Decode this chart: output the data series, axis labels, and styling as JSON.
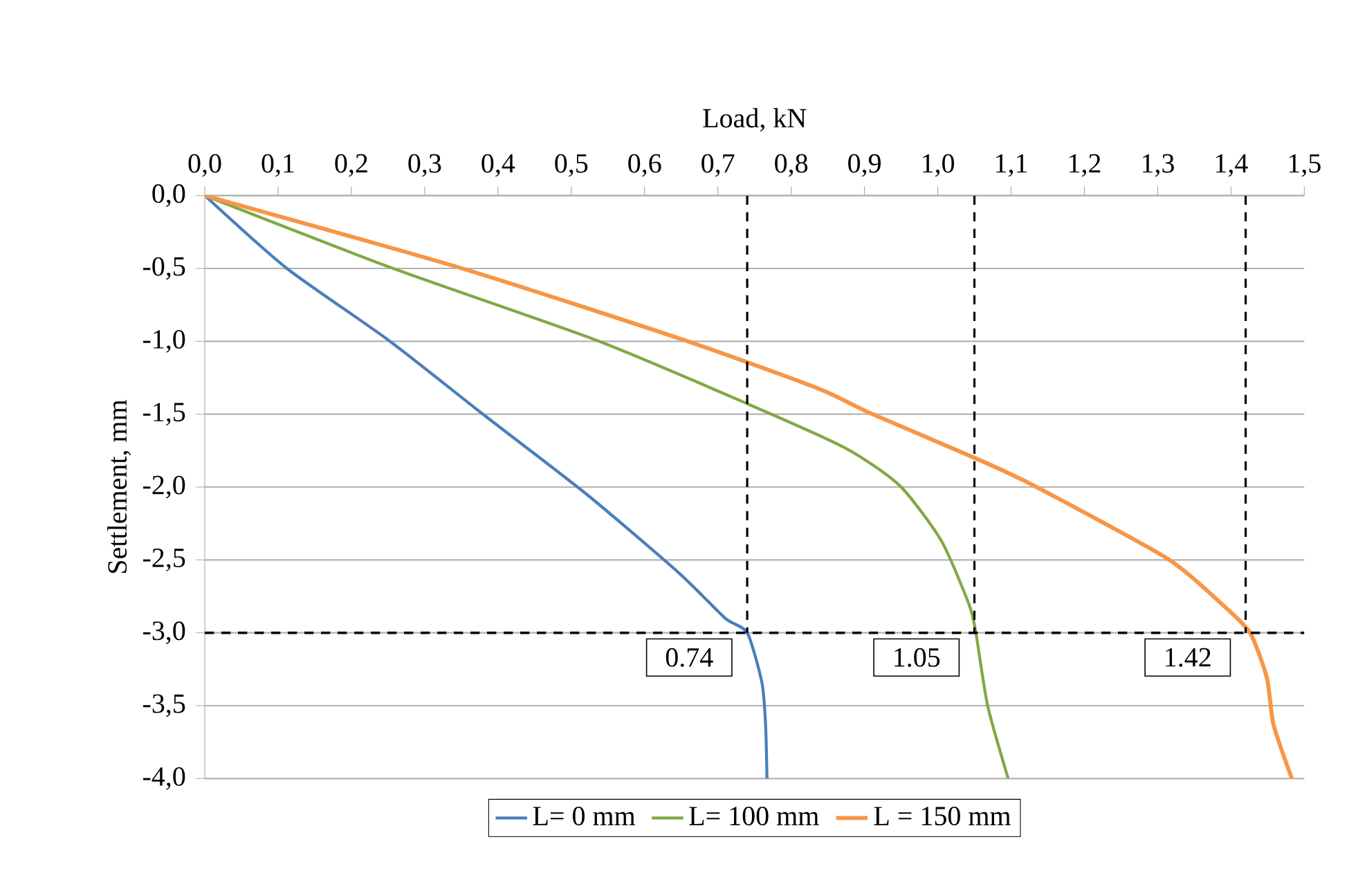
{
  "chart_data": {
    "type": "line",
    "xlabel": "Load, kN",
    "ylabel": "Settlement, mm",
    "series": [
      {
        "name": "L= 0 mm",
        "color": "#4a7ebb",
        "x": [
          0,
          0.112,
          0.25,
          0.382,
          0.521,
          0.647,
          0.71,
          0.74,
          0.76,
          0.765,
          0.767
        ],
        "values": [
          0,
          -0.5,
          -0.99,
          -1.51,
          -2.05,
          -2.59,
          -2.9,
          -3.0,
          -3.34,
          -3.62,
          -4.0
        ]
      },
      {
        "name": "L= 100 mm",
        "color": "#82a844",
        "x": [
          0,
          0.257,
          0.533,
          0.741,
          0.873,
          0.948,
          1.005,
          1.043,
          1.052,
          1.068,
          1.096
        ],
        "values": [
          0,
          -0.5,
          -0.99,
          -1.43,
          -1.73,
          -1.99,
          -2.37,
          -2.81,
          -3.0,
          -3.5,
          -4.0
        ]
      },
      {
        "name": "L = 150 mm",
        "color": "#f79646",
        "x": [
          0,
          0.351,
          0.653,
          0.835,
          0.911,
          1.055,
          1.131,
          1.313,
          1.389,
          1.426,
          1.449,
          1.458,
          1.483
        ],
        "values": [
          0,
          -0.5,
          -0.99,
          -1.32,
          -1.5,
          -1.81,
          -1.99,
          -2.49,
          -2.81,
          -3.0,
          -3.31,
          -3.63,
          -4.0
        ]
      }
    ],
    "xlim": [
      0,
      1.5
    ],
    "xticks": [
      {
        "value": 0,
        "label": "0,0"
      },
      {
        "value": 0.1,
        "label": "0,1"
      },
      {
        "value": 0.2,
        "label": "0,2"
      },
      {
        "value": 0.3,
        "label": "0,3"
      },
      {
        "value": 0.4,
        "label": "0,4"
      },
      {
        "value": 0.5,
        "label": "0,5"
      },
      {
        "value": 0.6,
        "label": "0,6"
      },
      {
        "value": 0.7,
        "label": "0,7"
      },
      {
        "value": 0.8,
        "label": "0,8"
      },
      {
        "value": 0.9,
        "label": "0,9"
      },
      {
        "value": 1.0,
        "label": "1,0"
      },
      {
        "value": 1.1,
        "label": "1,1"
      },
      {
        "value": 1.2,
        "label": "1,2"
      },
      {
        "value": 1.3,
        "label": "1,3"
      },
      {
        "value": 1.4,
        "label": "1,4"
      },
      {
        "value": 1.5,
        "label": "1,5"
      }
    ],
    "ylim": [
      -4,
      0
    ],
    "yticks": [
      {
        "value": 0,
        "label": "0,0"
      },
      {
        "value": -0.5,
        "label": "-0,5"
      },
      {
        "value": -1,
        "label": "-1,0"
      },
      {
        "value": -1.5,
        "label": "-1,5"
      },
      {
        "value": -2,
        "label": "-2,0"
      },
      {
        "value": -2.5,
        "label": "-2,5"
      },
      {
        "value": -3,
        "label": "-3,0"
      },
      {
        "value": -3.5,
        "label": "-3,5"
      },
      {
        "value": -4,
        "label": "-4,0"
      }
    ],
    "ref_lines": [
      {
        "axis": "y",
        "value": -3,
        "color": "#000000",
        "line_style": "dashed"
      },
      {
        "axis": "x",
        "value": 0.74,
        "label": "0.74",
        "color": "#000000",
        "line_style": "dashed"
      },
      {
        "axis": "x",
        "value": 1.05,
        "label": "1.05",
        "color": "#000000",
        "line_style": "dashed"
      },
      {
        "axis": "x",
        "value": 1.42,
        "label": "1.42",
        "color": "#000000",
        "line_style": "dashed"
      }
    ],
    "grid": "y",
    "legend": "bottom",
    "marker": "none",
    "line_style": "solid"
  }
}
